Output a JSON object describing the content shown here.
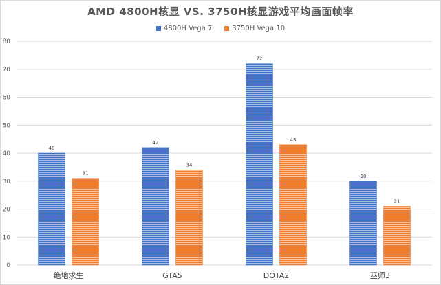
{
  "chart_data": {
    "type": "bar",
    "title": "AMD 4800H核显 VS. 3750H核显游戏平均画面帧率",
    "categories": [
      "绝地求生",
      "GTA5",
      "DOTA2",
      "巫师3"
    ],
    "series": [
      {
        "name": "4800H Vega 7",
        "values": [
          40,
          42,
          72,
          30
        ],
        "color": "#4472c4"
      },
      {
        "name": "3750H Vega 10",
        "values": [
          31,
          34,
          43,
          21
        ],
        "color": "#ed7d31"
      }
    ],
    "ylim": [
      0,
      80
    ],
    "yticks": [
      0,
      10,
      20,
      30,
      40,
      50,
      60,
      70,
      80
    ],
    "grid": true,
    "legend": "top-center",
    "data_labels": true
  }
}
